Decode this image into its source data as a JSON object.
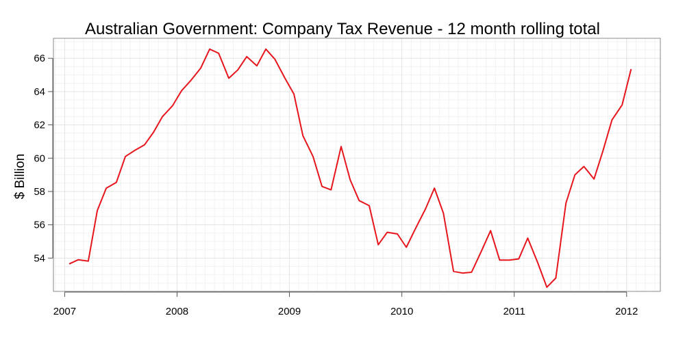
{
  "chart_data": {
    "type": "line",
    "title": "Australian Government: Company Tax Revenue - 12 month rolling total",
    "xlabel": "",
    "ylabel": "$ Billion",
    "xlim": [
      2006.9,
      2012.3
    ],
    "ylim": [
      52.0,
      67.2
    ],
    "x_ticks": [
      2007,
      2008,
      2009,
      2010,
      2011,
      2012
    ],
    "x_tick_labels": [
      "2007",
      "2008",
      "2009",
      "2010",
      "2011",
      "2012"
    ],
    "y_ticks": [
      54,
      56,
      58,
      60,
      62,
      64,
      66
    ],
    "y_tick_labels": [
      "54",
      "56",
      "58",
      "60",
      "62",
      "64",
      "66"
    ],
    "grid": true,
    "legend": "none",
    "colors": {
      "series": "#e8141b"
    },
    "series": [
      {
        "x": [
          2007.04,
          2007.12,
          2007.21,
          2007.29,
          2007.37,
          2007.46,
          2007.54,
          2007.62,
          2007.71,
          2007.79,
          2007.87,
          2007.96,
          2008.04,
          2008.12,
          2008.21,
          2008.29,
          2008.37,
          2008.46,
          2008.54,
          2008.62,
          2008.71,
          2008.79,
          2008.87,
          2008.96,
          2009.04,
          2009.12,
          2009.21,
          2009.29,
          2009.37,
          2009.46,
          2009.54,
          2009.62,
          2009.71,
          2009.79,
          2009.87,
          2009.96,
          2010.04,
          2010.12,
          2010.21,
          2010.29,
          2010.37,
          2010.46,
          2010.54,
          2010.62,
          2010.71,
          2010.79,
          2010.87,
          2010.96,
          2011.04,
          2011.12,
          2011.21,
          2011.29,
          2011.37,
          2011.46,
          2011.54,
          2011.62,
          2011.71,
          2011.79,
          2011.87,
          2011.96,
          2012.04
        ],
        "values": [
          53.65,
          53.9,
          53.82,
          56.85,
          58.2,
          58.55,
          60.1,
          60.45,
          60.8,
          61.55,
          62.5,
          63.15,
          64.05,
          64.65,
          65.4,
          66.55,
          66.3,
          64.8,
          65.3,
          66.1,
          65.55,
          66.55,
          65.95,
          64.8,
          63.85,
          61.35,
          60.1,
          58.3,
          58.1,
          60.7,
          58.7,
          57.45,
          57.15,
          54.8,
          55.55,
          55.45,
          54.65,
          55.75,
          56.95,
          58.2,
          56.7,
          53.2,
          53.1,
          53.15,
          54.45,
          55.65,
          53.88,
          53.88,
          53.95,
          55.2,
          53.7,
          52.25,
          52.8,
          57.3,
          59.0,
          59.5,
          58.75,
          60.45,
          62.3,
          63.2,
          65.35
        ]
      }
    ]
  }
}
